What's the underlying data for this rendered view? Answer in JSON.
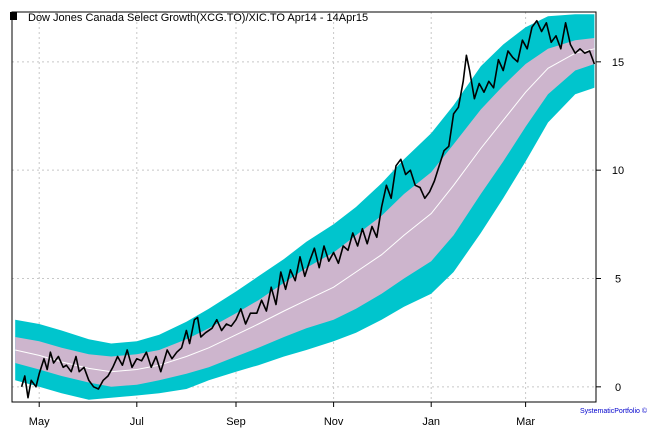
{
  "chart_data": {
    "type": "line",
    "title": "Dow Jones Canada Select Growth(XCG.TO)/XIC.TO Apr14 - 14Apr15",
    "legend_position": "top-left",
    "credit": "SystematicPortfolio ©",
    "xlabel": "",
    "ylabel": "",
    "y_axis_side": "right",
    "grid": true,
    "x_range": [
      "2014-04-14",
      "2015-04-14"
    ],
    "ylim": [
      -0.7,
      17.3
    ],
    "y_ticks": [
      0,
      5,
      10,
      15
    ],
    "x_ticks": [
      {
        "label": "May",
        "date": "2014-05-01"
      },
      {
        "label": "Jul",
        "date": "2014-07-01"
      },
      {
        "label": "Sep",
        "date": "2014-09-01"
      },
      {
        "label": "Nov",
        "date": "2014-11-01"
      },
      {
        "label": "Jan",
        "date": "2015-01-01"
      },
      {
        "label": "Mar",
        "date": "2015-03-01"
      }
    ],
    "colors": {
      "price": "#000000",
      "mid": "#ffffff",
      "inner_band": "#cdb5cd",
      "outer_band": "#00c5cd",
      "grid": "#c8c8c8",
      "credit": "#0000cc"
    },
    "series": [
      {
        "name": "Dow Jones Canada Select Growth(XCG.TO)/XIC.TO",
        "points": [
          [
            "2014-04-20",
            0.0
          ],
          [
            "2014-04-22",
            0.5
          ],
          [
            "2014-04-24",
            -0.5
          ],
          [
            "2014-04-26",
            0.3
          ],
          [
            "2014-04-29",
            0.0
          ],
          [
            "2014-05-01",
            0.6
          ],
          [
            "2014-05-04",
            1.3
          ],
          [
            "2014-05-06",
            0.8
          ],
          [
            "2014-05-08",
            1.6
          ],
          [
            "2014-05-10",
            1.1
          ],
          [
            "2014-05-13",
            1.4
          ],
          [
            "2014-05-16",
            0.9
          ],
          [
            "2014-05-18",
            1.0
          ],
          [
            "2014-05-21",
            0.7
          ],
          [
            "2014-05-24",
            1.4
          ],
          [
            "2014-05-26",
            0.7
          ],
          [
            "2014-05-29",
            0.9
          ],
          [
            "2014-06-01",
            0.3
          ],
          [
            "2014-06-04",
            0.0
          ],
          [
            "2014-06-07",
            -0.1
          ],
          [
            "2014-06-10",
            0.3
          ],
          [
            "2014-06-13",
            0.5
          ],
          [
            "2014-06-16",
            0.9
          ],
          [
            "2014-06-19",
            1.4
          ],
          [
            "2014-06-22",
            1.0
          ],
          [
            "2014-06-25",
            1.7
          ],
          [
            "2014-06-28",
            0.9
          ],
          [
            "2014-07-01",
            1.3
          ],
          [
            "2014-07-04",
            1.2
          ],
          [
            "2014-07-07",
            1.6
          ],
          [
            "2014-07-10",
            0.9
          ],
          [
            "2014-07-13",
            1.4
          ],
          [
            "2014-07-16",
            0.7
          ],
          [
            "2014-07-20",
            1.7
          ],
          [
            "2014-07-23",
            1.3
          ],
          [
            "2014-07-26",
            1.6
          ],
          [
            "2014-07-29",
            1.8
          ],
          [
            "2014-08-01",
            2.6
          ],
          [
            "2014-08-03",
            2.0
          ],
          [
            "2014-08-06",
            3.1
          ],
          [
            "2014-08-08",
            3.2
          ],
          [
            "2014-08-10",
            2.3
          ],
          [
            "2014-08-13",
            2.5
          ],
          [
            "2014-08-17",
            2.7
          ],
          [
            "2014-08-20",
            3.1
          ],
          [
            "2014-08-23",
            2.6
          ],
          [
            "2014-08-26",
            2.9
          ],
          [
            "2014-08-29",
            2.8
          ],
          [
            "2014-09-01",
            3.1
          ],
          [
            "2014-09-04",
            3.6
          ],
          [
            "2014-09-07",
            2.9
          ],
          [
            "2014-09-10",
            3.4
          ],
          [
            "2014-09-14",
            3.4
          ],
          [
            "2014-09-17",
            4.0
          ],
          [
            "2014-09-20",
            3.5
          ],
          [
            "2014-09-23",
            4.6
          ],
          [
            "2014-09-26",
            3.8
          ],
          [
            "2014-09-29",
            5.3
          ],
          [
            "2014-10-02",
            4.5
          ],
          [
            "2014-10-05",
            5.4
          ],
          [
            "2014-10-08",
            4.9
          ],
          [
            "2014-10-11",
            6.0
          ],
          [
            "2014-10-14",
            5.1
          ],
          [
            "2014-10-17",
            5.8
          ],
          [
            "2014-10-20",
            6.4
          ],
          [
            "2014-10-23",
            5.5
          ],
          [
            "2014-10-26",
            6.5
          ],
          [
            "2014-10-29",
            5.8
          ],
          [
            "2014-11-01",
            6.2
          ],
          [
            "2014-11-04",
            5.7
          ],
          [
            "2014-11-07",
            6.5
          ],
          [
            "2014-11-10",
            6.3
          ],
          [
            "2014-11-13",
            7.1
          ],
          [
            "2014-11-16",
            6.5
          ],
          [
            "2014-11-19",
            7.3
          ],
          [
            "2014-11-22",
            6.6
          ],
          [
            "2014-11-25",
            7.4
          ],
          [
            "2014-11-28",
            6.9
          ],
          [
            "2014-12-01",
            8.3
          ],
          [
            "2014-12-04",
            9.3
          ],
          [
            "2014-12-07",
            8.7
          ],
          [
            "2014-12-10",
            10.2
          ],
          [
            "2014-12-13",
            10.5
          ],
          [
            "2014-12-16",
            9.8
          ],
          [
            "2014-12-19",
            10.0
          ],
          [
            "2014-12-22",
            9.3
          ],
          [
            "2014-12-25",
            9.2
          ],
          [
            "2014-12-28",
            8.7
          ],
          [
            "2014-12-31",
            9.0
          ],
          [
            "2015-01-03",
            9.5
          ],
          [
            "2015-01-06",
            10.2
          ],
          [
            "2015-01-09",
            10.9
          ],
          [
            "2015-01-12",
            11.1
          ],
          [
            "2015-01-15",
            12.6
          ],
          [
            "2015-01-18",
            12.9
          ],
          [
            "2015-01-21",
            14.1
          ],
          [
            "2015-01-23",
            15.3
          ],
          [
            "2015-01-25",
            14.6
          ],
          [
            "2015-01-28",
            13.3
          ],
          [
            "2015-01-31",
            14.0
          ],
          [
            "2015-02-03",
            13.6
          ],
          [
            "2015-02-06",
            14.1
          ],
          [
            "2015-02-09",
            13.8
          ],
          [
            "2015-02-12",
            15.1
          ],
          [
            "2015-02-15",
            14.6
          ],
          [
            "2015-02-18",
            15.5
          ],
          [
            "2015-02-21",
            15.2
          ],
          [
            "2015-02-24",
            15.0
          ],
          [
            "2015-02-27",
            16.0
          ],
          [
            "2015-03-02",
            15.6
          ],
          [
            "2015-03-05",
            16.6
          ],
          [
            "2015-03-08",
            16.9
          ],
          [
            "2015-03-11",
            16.4
          ],
          [
            "2015-03-14",
            16.8
          ],
          [
            "2015-03-17",
            15.9
          ],
          [
            "2015-03-20",
            16.2
          ],
          [
            "2015-03-23",
            15.6
          ],
          [
            "2015-03-26",
            16.8
          ],
          [
            "2015-03-29",
            15.8
          ],
          [
            "2015-04-01",
            15.4
          ],
          [
            "2015-04-04",
            15.6
          ],
          [
            "2015-04-07",
            15.4
          ],
          [
            "2015-04-10",
            15.5
          ],
          [
            "2015-04-13",
            14.9
          ]
        ]
      },
      {
        "points": [
          [
            "2014-04-16",
            1.7
          ],
          [
            "2014-05-01",
            1.45
          ],
          [
            "2014-05-15",
            1.15
          ],
          [
            "2014-06-01",
            0.85
          ],
          [
            "2014-06-15",
            0.7
          ],
          [
            "2014-07-01",
            0.8
          ],
          [
            "2014-07-15",
            1.0
          ],
          [
            "2014-08-01",
            1.4
          ],
          [
            "2014-08-15",
            1.8
          ],
          [
            "2014-09-01",
            2.4
          ],
          [
            "2014-09-15",
            2.9
          ],
          [
            "2014-10-01",
            3.5
          ],
          [
            "2014-10-15",
            4.0
          ],
          [
            "2014-11-01",
            4.6
          ],
          [
            "2014-11-15",
            5.3
          ],
          [
            "2014-12-01",
            6.1
          ],
          [
            "2014-12-15",
            7.0
          ],
          [
            "2015-01-01",
            8.0
          ],
          [
            "2015-01-15",
            9.3
          ],
          [
            "2015-02-01",
            11.0
          ],
          [
            "2015-02-15",
            12.3
          ],
          [
            "2015-03-01",
            13.6
          ],
          [
            "2015-03-15",
            14.7
          ],
          [
            "2015-04-01",
            15.4
          ],
          [
            "2015-04-13",
            15.6
          ]
        ]
      },
      {
        "points": [
          [
            "2014-04-16",
            2.3
          ],
          [
            "2014-05-01",
            2.1
          ],
          [
            "2014-05-15",
            1.8
          ],
          [
            "2014-06-01",
            1.5
          ],
          [
            "2014-06-15",
            1.4
          ],
          [
            "2014-07-01",
            1.5
          ],
          [
            "2014-07-15",
            1.7
          ],
          [
            "2014-08-01",
            2.2
          ],
          [
            "2014-08-15",
            2.7
          ],
          [
            "2014-09-01",
            3.4
          ],
          [
            "2014-09-15",
            4.0
          ],
          [
            "2014-10-01",
            4.8
          ],
          [
            "2014-10-15",
            5.5
          ],
          [
            "2014-11-01",
            6.2
          ],
          [
            "2014-11-15",
            7.0
          ],
          [
            "2014-12-01",
            7.9
          ],
          [
            "2014-12-15",
            8.9
          ],
          [
            "2015-01-01",
            9.9
          ],
          [
            "2015-01-15",
            11.2
          ],
          [
            "2015-02-01",
            12.8
          ],
          [
            "2015-02-15",
            13.9
          ],
          [
            "2015-03-01",
            14.9
          ],
          [
            "2015-03-15",
            15.6
          ],
          [
            "2015-04-01",
            16.0
          ],
          [
            "2015-04-13",
            16.1
          ]
        ]
      },
      {
        "points": [
          [
            "2014-04-16",
            1.1
          ],
          [
            "2014-05-01",
            0.8
          ],
          [
            "2014-05-15",
            0.5
          ],
          [
            "2014-06-01",
            0.2
          ],
          [
            "2014-06-15",
            0.0
          ],
          [
            "2014-07-01",
            0.1
          ],
          [
            "2014-07-15",
            0.3
          ],
          [
            "2014-08-01",
            0.6
          ],
          [
            "2014-08-15",
            0.9
          ],
          [
            "2014-09-01",
            1.4
          ],
          [
            "2014-09-15",
            1.8
          ],
          [
            "2014-10-01",
            2.3
          ],
          [
            "2014-10-15",
            2.7
          ],
          [
            "2014-11-01",
            3.1
          ],
          [
            "2014-11-15",
            3.6
          ],
          [
            "2014-12-01",
            4.3
          ],
          [
            "2014-12-15",
            5.0
          ],
          [
            "2015-01-01",
            5.8
          ],
          [
            "2015-01-15",
            7.0
          ],
          [
            "2015-02-01",
            8.9
          ],
          [
            "2015-02-15",
            10.4
          ],
          [
            "2015-03-01",
            12.0
          ],
          [
            "2015-03-15",
            13.5
          ],
          [
            "2015-04-01",
            14.6
          ],
          [
            "2015-04-13",
            14.9
          ]
        ]
      },
      {
        "points": [
          [
            "2014-04-16",
            3.1
          ],
          [
            "2014-05-01",
            2.9
          ],
          [
            "2014-05-15",
            2.6
          ],
          [
            "2014-06-01",
            2.2
          ],
          [
            "2014-06-15",
            2.0
          ],
          [
            "2014-07-01",
            2.1
          ],
          [
            "2014-07-15",
            2.4
          ],
          [
            "2014-08-01",
            3.0
          ],
          [
            "2014-08-15",
            3.6
          ],
          [
            "2014-09-01",
            4.4
          ],
          [
            "2014-09-15",
            5.1
          ],
          [
            "2014-10-01",
            5.9
          ],
          [
            "2014-10-15",
            6.7
          ],
          [
            "2014-11-01",
            7.5
          ],
          [
            "2014-11-15",
            8.3
          ],
          [
            "2014-12-01",
            9.4
          ],
          [
            "2014-12-15",
            10.5
          ],
          [
            "2015-01-01",
            11.7
          ],
          [
            "2015-01-15",
            13.0
          ],
          [
            "2015-02-01",
            14.8
          ],
          [
            "2015-02-15",
            15.8
          ],
          [
            "2015-03-01",
            16.6
          ],
          [
            "2015-03-15",
            17.1
          ],
          [
            "2015-04-01",
            17.2
          ],
          [
            "2015-04-13",
            17.2
          ]
        ]
      },
      {
        "points": [
          [
            "2014-04-16",
            0.3
          ],
          [
            "2014-05-01",
            0.0
          ],
          [
            "2014-05-15",
            -0.3
          ],
          [
            "2014-06-01",
            -0.6
          ],
          [
            "2014-06-15",
            -0.5
          ],
          [
            "2014-07-01",
            -0.4
          ],
          [
            "2014-07-15",
            -0.3
          ],
          [
            "2014-08-01",
            -0.1
          ],
          [
            "2014-08-15",
            0.3
          ],
          [
            "2014-09-01",
            0.7
          ],
          [
            "2014-09-15",
            1.0
          ],
          [
            "2014-10-01",
            1.4
          ],
          [
            "2014-10-15",
            1.7
          ],
          [
            "2014-11-01",
            2.1
          ],
          [
            "2014-11-15",
            2.5
          ],
          [
            "2014-12-01",
            3.1
          ],
          [
            "2014-12-15",
            3.7
          ],
          [
            "2015-01-01",
            4.3
          ],
          [
            "2015-01-15",
            5.3
          ],
          [
            "2015-02-01",
            7.1
          ],
          [
            "2015-02-15",
            8.7
          ],
          [
            "2015-03-01",
            10.4
          ],
          [
            "2015-03-15",
            12.2
          ],
          [
            "2015-04-01",
            13.5
          ],
          [
            "2015-04-13",
            13.8
          ]
        ]
      }
    ]
  }
}
